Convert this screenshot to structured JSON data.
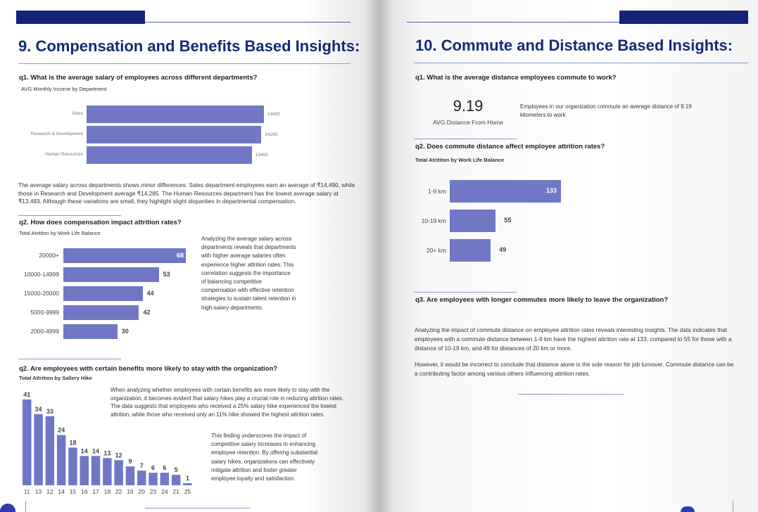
{
  "left": {
    "heading": "9. Compensation and Benefits Based Insights:",
    "q1": {
      "question": "q1. What is the average salary of employees across different departments?",
      "chart_title": "AVG Monthly Income by Department",
      "paragraph": "The average salary across departments shows minor differences: Sales department employees earn an average of ₹14,490, while those in Research and Development average ₹14,285. The Human Resources department has the lowest average salary at ₹13,493. Although these variations are small, they highlight slight disparities in departmental compensation."
    },
    "q2a": {
      "question": "q2. How does compensation impact attrition rates?",
      "chart_title": "Total Atrititon by Work Life Balance",
      "paragraph": "Analyzing the average salary across departments reveals that departments with higher average salaries often experience higher attrition rates. This correlation suggests the importance of balancing competitive compensation with effective retention strategies to sustain talent retention in high-salary departments."
    },
    "q2b": {
      "question": "q2. Are employees with certain benefits more likely to stay with the organization?",
      "chart_title": "Total Attrition by Sallery Hike",
      "paragraph1": "When analyzing whether employees with certain benefits are more likely to stay with the organization, it becomes evident that salary hikes play a crucial role in reducing attrition rates. The data suggests that employees who received a 25% salary hike experienced the lowest attrition, while those who received only an 11% hike showed the highest attrition rates.",
      "paragraph2": "This finding underscores the impact of competitive salary increases in enhancing employee retention. By offering substantial salary hikes, organizations can effectively mitigate attrition and foster greater employee loyalty and satisfaction."
    }
  },
  "right": {
    "heading": "10. Commute and Distance Based Insights:",
    "q1": {
      "question": "q1. What is the average distance employees commute to work?",
      "kpi_value": "9.19",
      "kpi_label": "AVG Distance From Home",
      "paragraph": "Employees in our organization commute an average distance of 9.19 kilometers to work."
    },
    "q2": {
      "question": "q2. Does commute distance affect employee attrition rates?",
      "chart_title": "Total Atrititon by Work Life Balance"
    },
    "q3": {
      "question": "q3. Are employees with longer commutes more likely to leave the organization?",
      "paragraph1": "Analyzing the impact of commute distance on employee attrition rates reveals interesting insights. The data indicates that employees with a commute distance between 1-9 km have the highest attrition rate at 133, compared to 55 for those with a distance of 10-19 km, and 49 for distances of 20 km or more.",
      "paragraph2": "However, it would be incorrect to conclude that distance alone is the sole reason for job turnover. Commute distance can be a contributing factor among various others influencing attrition rates."
    }
  },
  "colors": {
    "accent": "#15227a",
    "heading": "#172a78",
    "bar": "#7078c6"
  },
  "chart_data": [
    {
      "type": "bar",
      "orientation": "horizontal",
      "title": "AVG Monthly Income by Department",
      "categories": [
        "Sales",
        "Research & Development",
        "Human Resources"
      ],
      "values": [
        14490,
        14285,
        13493
      ]
    },
    {
      "type": "bar",
      "orientation": "horizontal",
      "title": "Total Atrititon by Work Life Balance",
      "categories": [
        "20000+",
        "10000-14999",
        "15000-20000",
        "5000-9999",
        "2000-4999"
      ],
      "values": [
        68,
        53,
        44,
        42,
        30
      ]
    },
    {
      "type": "bar",
      "orientation": "vertical",
      "title": "Total Attrition by Sallery Hike",
      "categories": [
        "11",
        "13",
        "12",
        "14",
        "15",
        "16",
        "17",
        "18",
        "22",
        "19",
        "20",
        "23",
        "24",
        "21",
        "25"
      ],
      "values": [
        41,
        34,
        33,
        24,
        18,
        14,
        14,
        13,
        12,
        9,
        7,
        6,
        6,
        5,
        1
      ]
    },
    {
      "type": "bar",
      "orientation": "horizontal",
      "title": "Total Atrititon by Work Life Balance",
      "categories": [
        "1-9 km",
        "10-19 km",
        "20+ km"
      ],
      "values": [
        133,
        55,
        49
      ]
    }
  ]
}
